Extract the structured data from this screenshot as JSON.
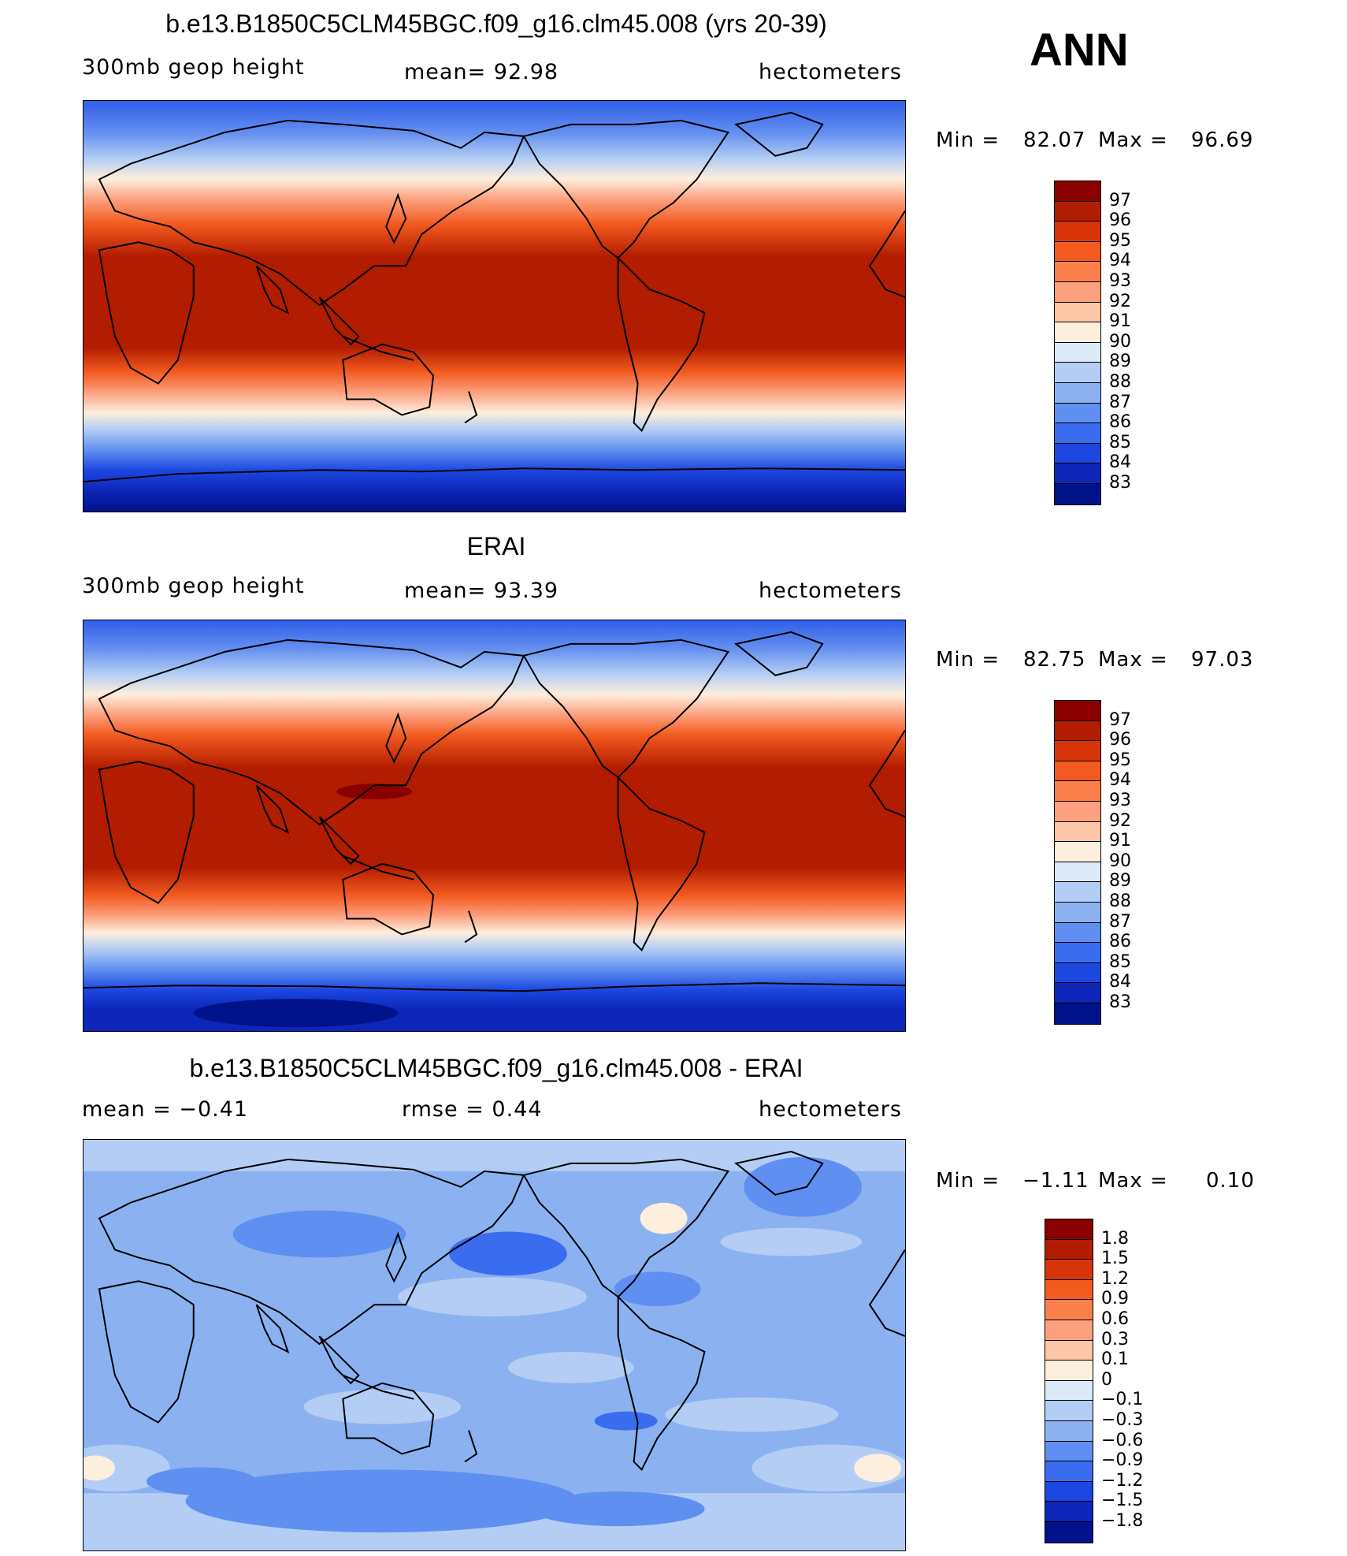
{
  "season": "ANN",
  "panels": [
    {
      "title": "b.e13.B1850C5CLM45BGC.f09_g16.clm45.008 (yrs 20-39)",
      "left_label": "300mb  geop  height",
      "center_label": "mean=   92.98",
      "right_label": "hectometers",
      "min_label": "Min  =",
      "min_value": "82.07",
      "max_label": "Max  =",
      "max_value": "96.69",
      "colorbar_labels": [
        "97",
        "96",
        "95",
        "94",
        "93",
        "92",
        "91",
        "90",
        "89",
        "88",
        "87",
        "86",
        "85",
        "84",
        "83"
      ]
    },
    {
      "title": "ERAI",
      "left_label": "300mb  geop  height",
      "center_label": "mean=   93.39",
      "right_label": "hectometers",
      "min_label": "Min  =",
      "min_value": "82.75",
      "max_label": "Max  =",
      "max_value": "97.03",
      "colorbar_labels": [
        "97",
        "96",
        "95",
        "94",
        "93",
        "92",
        "91",
        "90",
        "89",
        "88",
        "87",
        "86",
        "85",
        "84",
        "83"
      ]
    },
    {
      "title": "b.e13.B1850C5CLM45BGC.f09_g16.clm45.008 - ERAI",
      "left_label": "mean  =   −0.41",
      "center_label": "rmse  =    0.44",
      "right_label": "hectometers",
      "min_label": "Min  =",
      "min_value": "−1.11",
      "max_label": "Max  =",
      "max_value": "0.10",
      "colorbar_labels": [
        "1.8",
        "1.5",
        "1.2",
        "0.9",
        "0.6",
        "0.3",
        "0.1",
        "0",
        "−0.1",
        "−0.3",
        "−0.6",
        "−0.9",
        "−1.2",
        "−1.5",
        "−1.8"
      ]
    }
  ],
  "colors": {
    "field_palette": [
      "#8a0000",
      "#b21c00",
      "#d8340a",
      "#f25a1f",
      "#fb7f4b",
      "#fca07e",
      "#fdc7a7",
      "#fdeedd",
      "#dce9f8",
      "#b3cdf4",
      "#8bb1f0",
      "#5f8ff0",
      "#3a6cf0",
      "#1c47e0",
      "#0d25b8",
      "#00138a"
    ],
    "diff_palette": [
      "#8a0000",
      "#b21c00",
      "#d8340a",
      "#f25a1f",
      "#fb7f4b",
      "#fca07e",
      "#fdc7a7",
      "#fdeedd",
      "#dce9f8",
      "#b3cdf4",
      "#8bb1f0",
      "#5f8ff0",
      "#3a6cf0",
      "#1c47e0",
      "#0d25b8",
      "#00138a"
    ]
  }
}
